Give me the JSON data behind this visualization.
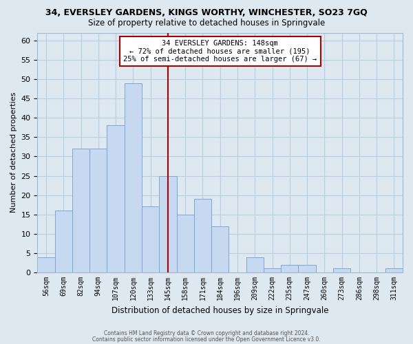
{
  "title_line1": "34, EVERSLEY GARDENS, KINGS WORTHY, WINCHESTER, SO23 7GQ",
  "title_line2": "Size of property relative to detached houses in Springvale",
  "xlabel": "Distribution of detached houses by size in Springvale",
  "ylabel": "Number of detached properties",
  "bar_labels": [
    "56sqm",
    "69sqm",
    "82sqm",
    "94sqm",
    "107sqm",
    "120sqm",
    "133sqm",
    "145sqm",
    "158sqm",
    "171sqm",
    "184sqm",
    "196sqm",
    "209sqm",
    "222sqm",
    "235sqm",
    "247sqm",
    "260sqm",
    "273sqm",
    "286sqm",
    "298sqm",
    "311sqm"
  ],
  "bar_values": [
    4,
    16,
    32,
    32,
    38,
    49,
    17,
    25,
    15,
    19,
    12,
    0,
    4,
    1,
    2,
    2,
    0,
    1,
    0,
    0,
    1
  ],
  "bar_color": "#c6d9f1",
  "bar_edge_color": "#7ba7d4",
  "grid_color": "#b8cfe0",
  "background_color": "#dde8f0",
  "vline_x": 7.5,
  "vline_color": "#aa0000",
  "annotation_title": "34 EVERSLEY GARDENS: 148sqm",
  "annotation_line1": "← 72% of detached houses are smaller (195)",
  "annotation_line2": "25% of semi-detached houses are larger (67) →",
  "annotation_box_facecolor": "#ffffff",
  "annotation_box_edgecolor": "#aa0000",
  "ylim": [
    0,
    62
  ],
  "yticks": [
    0,
    5,
    10,
    15,
    20,
    25,
    30,
    35,
    40,
    45,
    50,
    55,
    60
  ],
  "footnote1": "Contains HM Land Registry data © Crown copyright and database right 2024.",
  "footnote2": "Contains public sector information licensed under the Open Government Licence v3.0."
}
